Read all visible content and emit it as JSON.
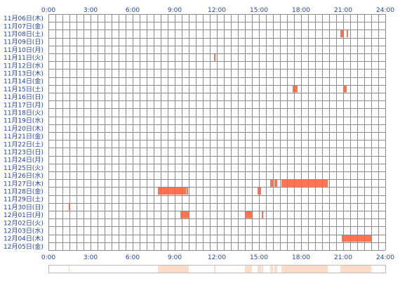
{
  "chart_data": {
    "type": "heatmap",
    "title": "",
    "xlabel": "",
    "ylabel": "",
    "x_ticks": [
      "0:00",
      "3:00",
      "6:00",
      "9:00",
      "12:00",
      "15:00",
      "18:00",
      "21:00",
      "24:00"
    ],
    "xlim": [
      0,
      24
    ],
    "grid": true,
    "colors": {
      "bar": "#ff7450",
      "bar_light": "#ffb096",
      "grid": "#8c8c8c",
      "summary": "#ffdcc8",
      "label": "#2244aa"
    },
    "days": [
      "11月06日(木)",
      "11月07日(金)",
      "11月08日(土)",
      "11月09日(日)",
      "11月10日(月)",
      "11月11日(火)",
      "11月12日(水)",
      "11月13日(木)",
      "11月14日(金)",
      "11月15日(土)",
      "11月16日(日)",
      "11月17日(月)",
      "11月18日(火)",
      "11月19日(水)",
      "11月20日(木)",
      "11月21日(金)",
      "11月22日(土)",
      "11月23日(日)",
      "11月24日(月)",
      "11月25日(火)",
      "11月26日(水)",
      "11月27日(木)",
      "11月28日(金)",
      "11月29日(土)",
      "11月30日(日)",
      "12月01日(月)",
      "12月02日(火)",
      "12月03日(水)",
      "12月04日(木)",
      "12月05日(金)"
    ],
    "segments": [
      {
        "day": "11月08日(土)",
        "start": 20.8,
        "end": 21.0
      },
      {
        "day": "11月08日(土)",
        "start": 21.25,
        "end": 21.35
      },
      {
        "day": "11月11日(火)",
        "start": 11.8,
        "end": 11.9
      },
      {
        "day": "11月15日(土)",
        "start": 17.4,
        "end": 17.75
      },
      {
        "day": "11月15日(土)",
        "start": 21.0,
        "end": 21.25
      },
      {
        "day": "11月27日(木)",
        "start": 15.8,
        "end": 16.0
      },
      {
        "day": "11月27日(木)",
        "start": 16.1,
        "end": 16.3
      },
      {
        "day": "11月27日(木)",
        "start": 16.6,
        "end": 19.9
      },
      {
        "day": "11月28日(金)",
        "start": 7.8,
        "end": 9.8
      },
      {
        "day": "11月28日(金)",
        "start": 9.85,
        "end": 9.95
      },
      {
        "day": "11月28日(金)",
        "start": 14.9,
        "end": 15.15
      },
      {
        "day": "11月30日(日)",
        "start": 1.45,
        "end": 1.5
      },
      {
        "day": "12月01日(月)",
        "start": 9.4,
        "end": 10.0
      },
      {
        "day": "12月01日(月)",
        "start": 14.0,
        "end": 14.5
      },
      {
        "day": "12月01日(月)",
        "start": 15.2,
        "end": 15.3
      },
      {
        "day": "12月04日(木)",
        "start": 20.9,
        "end": 23.0
      }
    ]
  }
}
